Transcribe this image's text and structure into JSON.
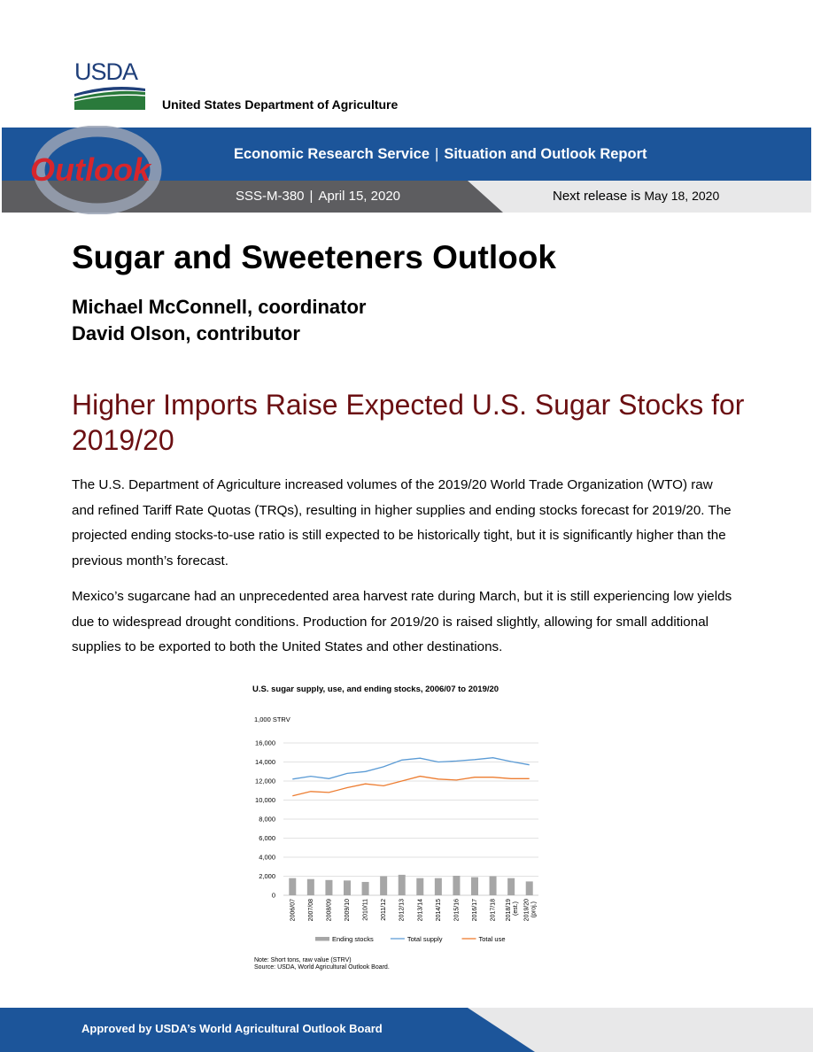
{
  "header": {
    "logo_text": "USDA",
    "agency": "United States Department of Agriculture"
  },
  "banner": {
    "outlook_logo_text": "Outlook",
    "service": "Economic Research Service",
    "separator": "|",
    "report_type": "Situation and Outlook Report",
    "report_id": "SSS-M-380",
    "date": "April 15, 2020",
    "next_release_label": "Next release is",
    "next_release_date": "May 18, 2020"
  },
  "title": "Sugar and Sweeteners Outlook",
  "authors": [
    "Michael McConnell, coordinator",
    "David Olson, contributor"
  ],
  "headline": "Higher Imports Raise Expected U.S. Sugar Stocks for 2019/20",
  "paragraphs": [
    "The U.S. Department of Agriculture increased volumes of the 2019/20 World Trade Organization (WTO) raw and refined Tariff Rate Quotas (TRQs), resulting in higher supplies and ending stocks forecast for 2019/20. The projected ending stocks-to-use ratio is still expected to be historically tight, but it is significantly higher than the previous month’s forecast.",
    "Mexico’s sugarcane had an unprecedented area harvest rate during March, but it is still experiencing low yields due to widespread drought conditions. Production for 2019/20 is raised slightly, allowing for small additional supplies to be exported to both the United States and other destinations."
  ],
  "chart_data": {
    "type": "bar+line",
    "title": "U.S. sugar supply, use, and ending stocks, 2006/07 to 2019/20",
    "ylabel": "1,000 STRV",
    "ylim": [
      0,
      16000
    ],
    "yticks": [
      0,
      2000,
      4000,
      6000,
      8000,
      10000,
      12000,
      14000,
      16000
    ],
    "ytick_labels": [
      "0",
      "2,000",
      "4,000",
      "6,000",
      "8,000",
      "10,000",
      "12,000",
      "14,000",
      "16,000"
    ],
    "categories": [
      "2006/07",
      "2007/08",
      "2008/09",
      "2009/10",
      "2010/11",
      "2011/12",
      "2012/13",
      "2013/14",
      "2014/15",
      "2015/16",
      "2016/17",
      "2017/18",
      "2018/19 (est.)",
      "2019/20 (proj.)"
    ],
    "series": [
      {
        "name": "Ending stocks",
        "kind": "bar",
        "color": "#a6a6a6",
        "values": [
          1800,
          1700,
          1600,
          1550,
          1400,
          2000,
          2150,
          1800,
          1800,
          2050,
          1900,
          2000,
          1800,
          1450
        ]
      },
      {
        "name": "Total supply",
        "kind": "line",
        "color": "#5b9bd5",
        "values": [
          12200,
          12500,
          12250,
          12800,
          13000,
          13500,
          14200,
          14400,
          14000,
          14100,
          14250,
          14450,
          14050,
          13700
        ]
      },
      {
        "name": "Total use",
        "kind": "line",
        "color": "#ed7d31",
        "values": [
          10450,
          10900,
          10800,
          11300,
          11700,
          11500,
          12000,
          12500,
          12200,
          12100,
          12400,
          12400,
          12250,
          12250
        ]
      }
    ],
    "legend_position": "bottom",
    "grid": true,
    "notes": [
      "Note: Short tons, raw value (STRV)",
      "Source: USDA, World Agricultural Outlook Board."
    ]
  },
  "footer": {
    "text": "Approved by USDA’s World Agricultural Outlook Board"
  }
}
